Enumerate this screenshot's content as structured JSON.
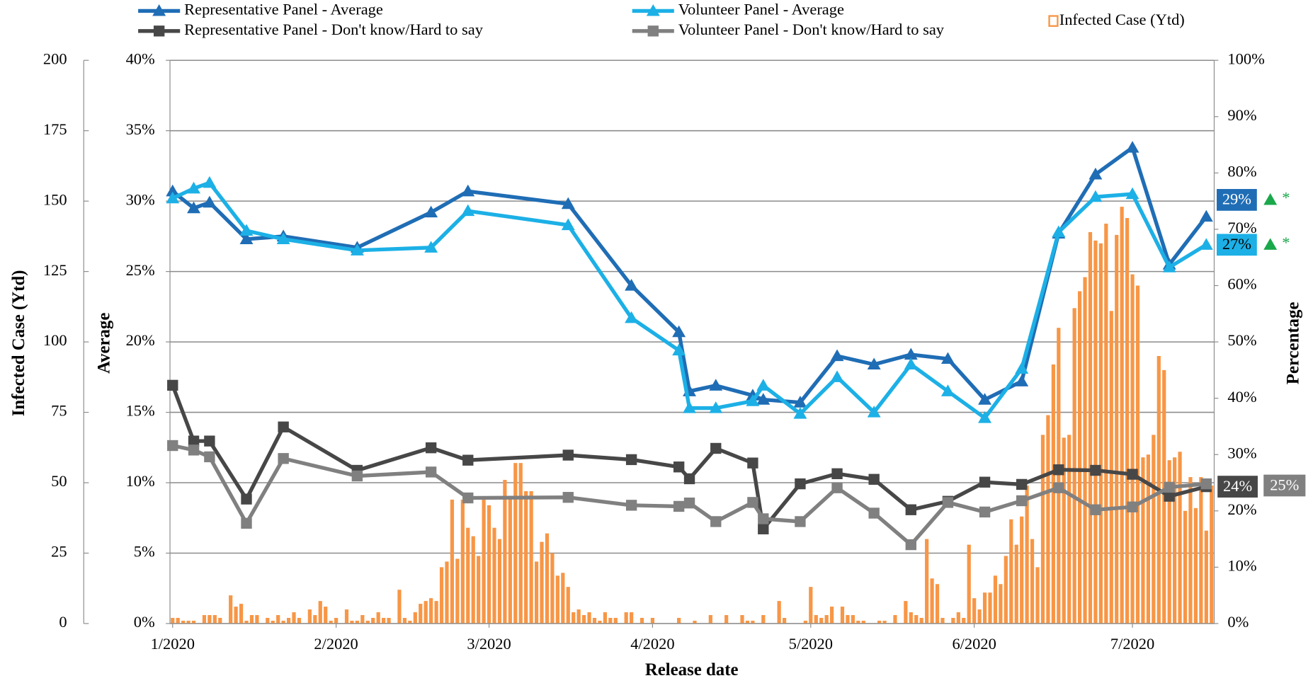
{
  "chart_data": {
    "type": "line",
    "x_label": "Release date",
    "y_label": "Average",
    "y2_label": "Percentage",
    "y3_label": "Infected Case (Ytd)",
    "grid": true,
    "xlim": [
      -0.5,
      197.5
    ],
    "xticks": [
      {
        "value": 0,
        "label": "1/2020"
      },
      {
        "value": 31,
        "label": "2/2020"
      },
      {
        "value": 60,
        "label": "3/2020"
      },
      {
        "value": 91,
        "label": "4/2020"
      },
      {
        "value": 121,
        "label": "5/2020"
      },
      {
        "value": 152,
        "label": "6/2020"
      },
      {
        "value": 182,
        "label": "7/2020"
      }
    ],
    "ylim": [
      0,
      40
    ],
    "yticks": [
      {
        "value": 0,
        "label": "0%"
      },
      {
        "value": 5,
        "label": "5%"
      },
      {
        "value": 10,
        "label": "10%"
      },
      {
        "value": 15,
        "label": "15%"
      },
      {
        "value": 20,
        "label": "20%"
      },
      {
        "value": 25,
        "label": "25%"
      },
      {
        "value": 30,
        "label": "30%"
      },
      {
        "value": 35,
        "label": "35%"
      },
      {
        "value": 40,
        "label": "40%"
      }
    ],
    "y2lim": [
      0,
      100
    ],
    "y2ticks": [
      {
        "value": 0,
        "label": "0%"
      },
      {
        "value": 10,
        "label": "10%"
      },
      {
        "value": 20,
        "label": "20%"
      },
      {
        "value": 30,
        "label": "30%"
      },
      {
        "value": 40,
        "label": "40%"
      },
      {
        "value": 50,
        "label": "50%"
      },
      {
        "value": 60,
        "label": "60%"
      },
      {
        "value": 70,
        "label": "70%"
      },
      {
        "value": 80,
        "label": "80%"
      },
      {
        "value": 90,
        "label": "90%"
      },
      {
        "value": 100,
        "label": "100%"
      }
    ],
    "y3lim": [
      0,
      200
    ],
    "y3ticks": [
      0,
      25,
      50,
      75,
      100,
      125,
      150,
      175,
      200
    ],
    "x": [
      0,
      4,
      7,
      14,
      21,
      35,
      49,
      56,
      75,
      87,
      96,
      98,
      103,
      110,
      112,
      119,
      126,
      133,
      140,
      147,
      154,
      161,
      168,
      175,
      182,
      189,
      196
    ],
    "series": [
      {
        "name": "Infected Case (Ytd)",
        "type": "bar",
        "axis": "y3",
        "color": "#f79646",
        "marker": "hollow-square",
        "x": [
          0,
          1,
          2,
          3,
          4,
          5,
          6,
          7,
          8,
          9,
          10,
          11,
          12,
          13,
          14,
          15,
          16,
          17,
          18,
          19,
          20,
          21,
          22,
          23,
          24,
          25,
          26,
          27,
          28,
          29,
          30,
          31,
          32,
          33,
          34,
          35,
          36,
          37,
          38,
          39,
          40,
          41,
          42,
          43,
          44,
          45,
          46,
          47,
          48,
          49,
          50,
          51,
          52,
          53,
          54,
          55,
          56,
          57,
          58,
          59,
          60,
          61,
          62,
          63,
          64,
          65,
          66,
          67,
          68,
          69,
          70,
          71,
          72,
          73,
          74,
          75,
          76,
          77,
          78,
          79,
          80,
          81,
          82,
          83,
          84,
          85,
          86,
          87,
          88,
          89,
          90,
          91,
          92,
          93,
          94,
          95,
          96,
          97,
          98,
          99,
          100,
          101,
          102,
          103,
          104,
          105,
          106,
          107,
          108,
          109,
          110,
          111,
          112,
          113,
          114,
          115,
          116,
          117,
          118,
          119,
          120,
          121,
          122,
          123,
          124,
          125,
          126,
          127,
          128,
          129,
          130,
          131,
          132,
          133,
          134,
          135,
          136,
          137,
          138,
          139,
          140,
          141,
          142,
          143,
          144,
          145,
          146,
          147,
          148,
          149,
          150,
          151,
          152,
          153,
          154,
          155,
          156,
          157,
          158,
          159,
          160,
          161,
          162,
          163,
          164,
          165,
          166,
          167,
          168,
          169,
          170,
          171,
          172,
          173,
          174,
          175,
          176,
          177,
          178,
          179,
          180,
          181,
          182,
          183,
          184,
          185,
          186,
          187,
          188,
          189,
          190,
          191,
          192,
          193,
          194,
          195,
          196,
          197
        ],
        "values": [
          2,
          2,
          1,
          1,
          1,
          0,
          3,
          3,
          3,
          2,
          0,
          10,
          6,
          7,
          1,
          3,
          3,
          0,
          2,
          1,
          3,
          1,
          2,
          4,
          2,
          0,
          5,
          3,
          8,
          6,
          1,
          2,
          0,
          5,
          1,
          1,
          3,
          1,
          2,
          4,
          2,
          2,
          0,
          12,
          2,
          1,
          4,
          7,
          8,
          9,
          8,
          20,
          22,
          44,
          23,
          44,
          34,
          31,
          24,
          44,
          42,
          34,
          30,
          51,
          45,
          57,
          57,
          47,
          47,
          22,
          29,
          32,
          25,
          17,
          18,
          13,
          4,
          5,
          3,
          4,
          2,
          1,
          4,
          2,
          2,
          0,
          4,
          4,
          0,
          2,
          0,
          2,
          0,
          0,
          0,
          0,
          2,
          0,
          0,
          1,
          0,
          0,
          3,
          0,
          0,
          3,
          0,
          0,
          3,
          1,
          1,
          0,
          3,
          0,
          0,
          8,
          2,
          0,
          0,
          0,
          1,
          13,
          3,
          2,
          3,
          6,
          0,
          6,
          3,
          3,
          1,
          1,
          0,
          0,
          1,
          1,
          0,
          3,
          0,
          8,
          4,
          3,
          2,
          30,
          16,
          14,
          2,
          0,
          2,
          4,
          2,
          28,
          9,
          5,
          11,
          11,
          17,
          14,
          24,
          37,
          28,
          38,
          49,
          30,
          20,
          67,
          74,
          92,
          105,
          66,
          67,
          112,
          118,
          123,
          139,
          136,
          135,
          142,
          111,
          138,
          148,
          144,
          124,
          120,
          59,
          60,
          67,
          95,
          90,
          58,
          59,
          61,
          40,
          52,
          41,
          52,
          33,
          49
        ]
      },
      {
        "name": "Representative Panel - Average",
        "axis": "y",
        "color": "#1f6db5",
        "marker": "triangle",
        "values": [
          30.7,
          29.5,
          29.9,
          27.3,
          27.5,
          26.7,
          29.2,
          30.7,
          29.8,
          24.0,
          20.7,
          16.5,
          16.9,
          16.2,
          15.9,
          15.7,
          19.0,
          18.4,
          19.1,
          18.8,
          15.9,
          17.2,
          27.7,
          31.9,
          33.8,
          25.5,
          28.9
        ],
        "end_label": "29%",
        "end_mark": "*"
      },
      {
        "name": "Volunteer Panel - Average",
        "axis": "y",
        "color": "#1cb0e6",
        "marker": "triangle",
        "values": [
          30.2,
          30.9,
          31.3,
          27.9,
          27.3,
          26.5,
          26.7,
          29.3,
          28.3,
          21.7,
          19.4,
          15.3,
          15.3,
          15.8,
          16.9,
          14.9,
          17.5,
          15.0,
          18.4,
          16.5,
          14.6,
          18.1,
          27.8,
          30.3,
          30.5,
          25.3,
          26.9
        ],
        "end_label": "27%",
        "end_mark": "*"
      },
      {
        "name": "Representative Panel - Don't know/Hard to say",
        "axis": "y2",
        "color": "#474747",
        "marker": "square",
        "values": [
          42.3,
          32.4,
          32.4,
          22.1,
          34.9,
          27.2,
          31.2,
          29.0,
          29.9,
          29.1,
          27.8,
          25.7,
          31.1,
          28.5,
          16.8,
          24.8,
          26.6,
          25.6,
          20.2,
          21.7,
          25.1,
          24.7,
          27.3,
          27.2,
          26.5,
          22.6,
          24.3
        ],
        "end_label": "24%"
      },
      {
        "name": "Volunteer Panel - Don't know/Hard to say",
        "axis": "y2",
        "color": "#808080",
        "marker": "square",
        "values": [
          31.6,
          30.8,
          29.6,
          17.8,
          29.3,
          26.2,
          26.9,
          22.3,
          22.4,
          21.0,
          20.8,
          21.4,
          18.1,
          21.5,
          18.6,
          18.1,
          24.1,
          19.6,
          14.0,
          21.5,
          19.8,
          21.8,
          24.1,
          20.2,
          20.7,
          24.2,
          24.8
        ],
        "end_label": "25%"
      }
    ]
  }
}
